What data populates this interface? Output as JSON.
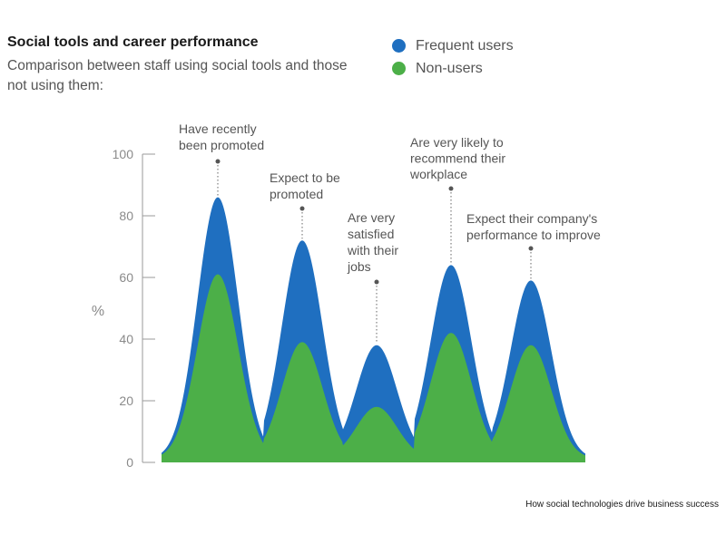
{
  "chart_data": {
    "type": "area",
    "title": "Social tools and career performance",
    "subtitle": "Comparison between staff using social tools and those not using them:",
    "ylabel": "%",
    "ylim": [
      0,
      100
    ],
    "yticks": [
      "0",
      "20",
      "40",
      "60",
      "80",
      "100"
    ],
    "categories": [
      "Have recently been promoted",
      "Expect to be promoted",
      "Are very satisfied with their jobs",
      "Are very likely to recommend their workplace",
      "Expect their company's performance to improve"
    ],
    "annotations": [
      [
        "Have recently",
        "been promoted"
      ],
      [
        "Expect to be",
        "promoted"
      ],
      [
        "Are very",
        "satisfied",
        "with their",
        "jobs"
      ],
      [
        "Are very likely to",
        "recommend their",
        "workplace"
      ],
      [
        "Expect their company's",
        "performance to improve"
      ]
    ],
    "series": [
      {
        "name": "Frequent users",
        "color": "#1f6fc0",
        "values": [
          86,
          72,
          38,
          64,
          59
        ]
      },
      {
        "name": "Non-users",
        "color": "#4caf48",
        "values": [
          61,
          39,
          18,
          42,
          38
        ]
      }
    ],
    "grid": false,
    "legend": "top-right"
  },
  "source": "How social technologies drive business success"
}
